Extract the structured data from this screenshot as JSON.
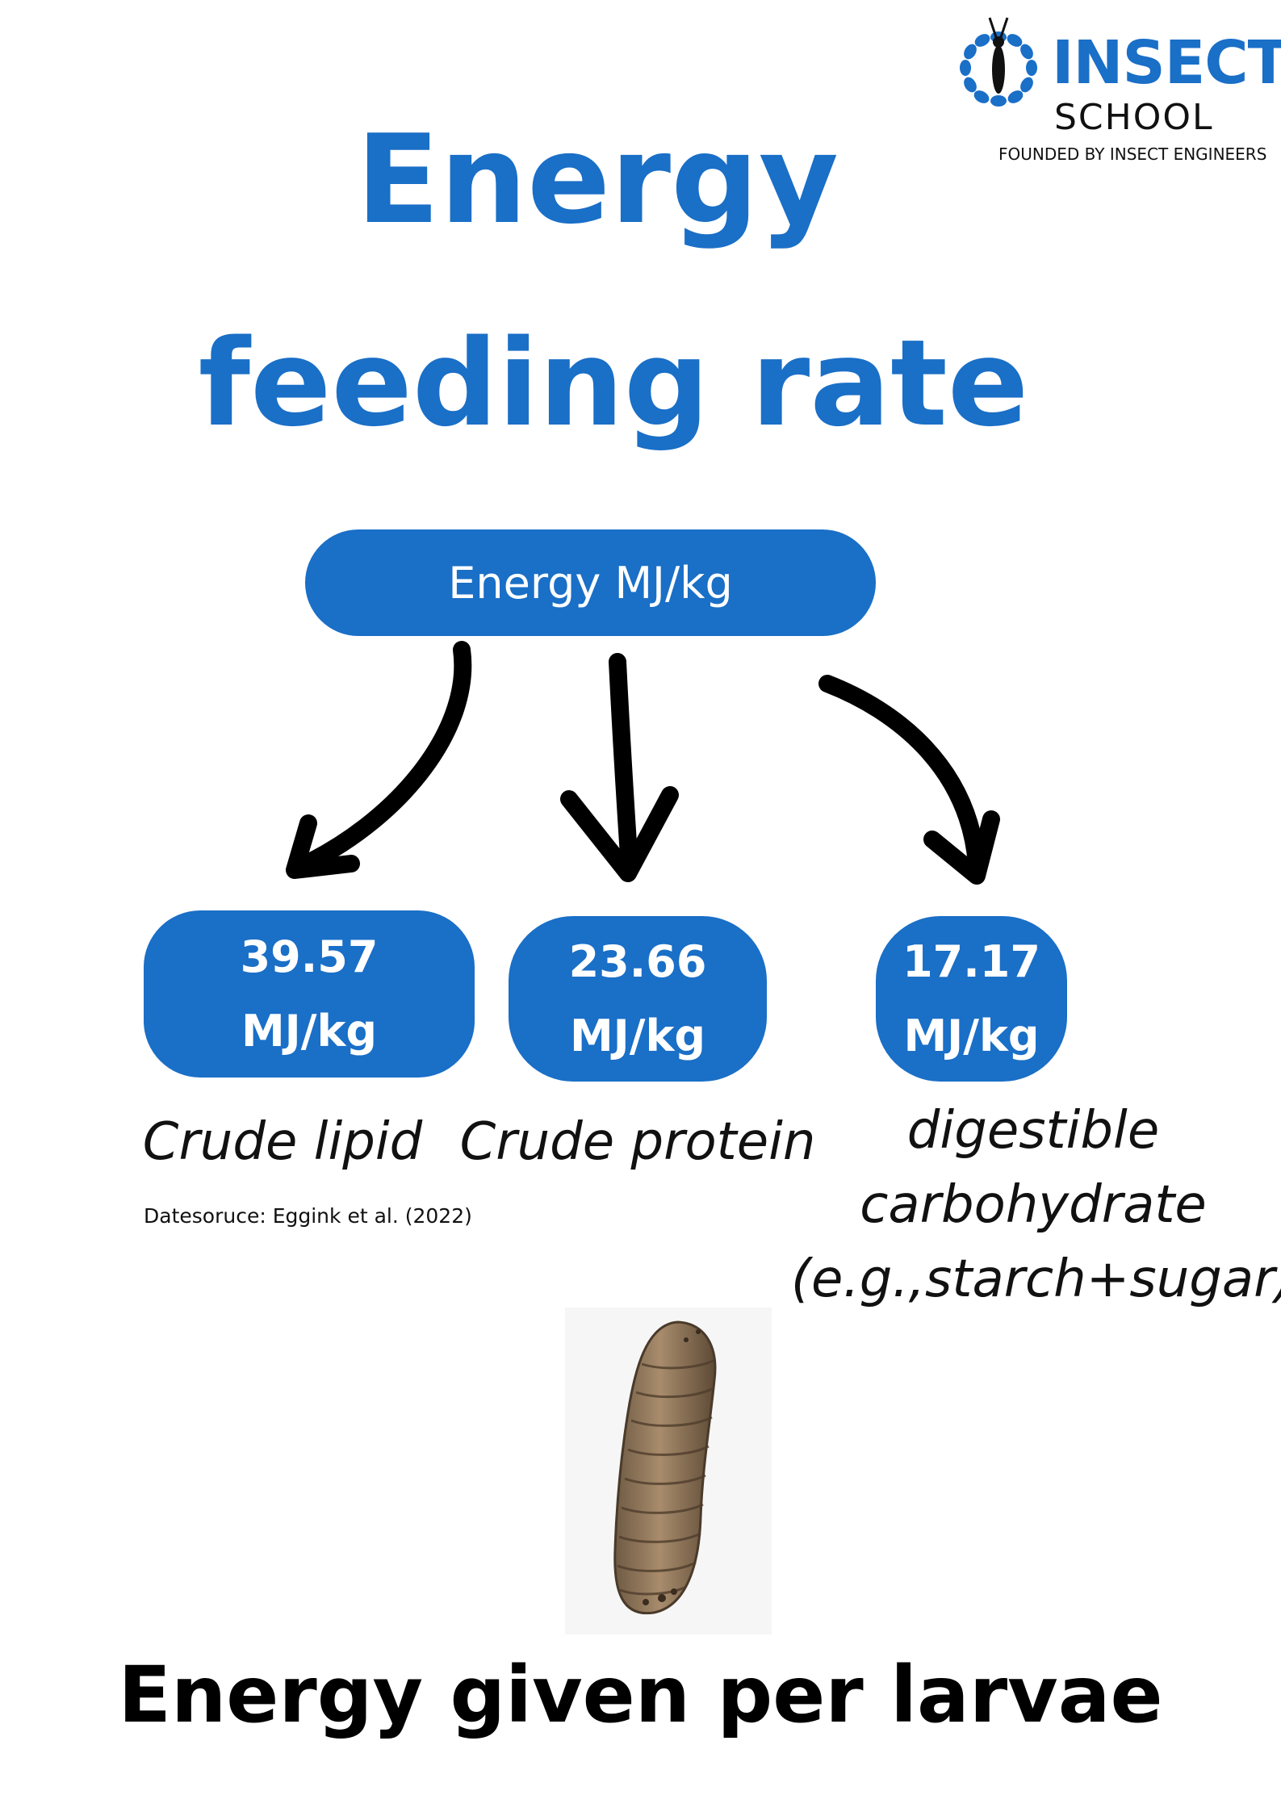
{
  "logo": {
    "brand_top": "INSECT",
    "brand_bottom": "SCHOOL",
    "tagline": "FOUNDED BY INSECT ENGINEERS",
    "icon": "insect-logo-icon",
    "brand_color": "#1a6fc7"
  },
  "title": {
    "line1": "Energy",
    "line2": "feeding rate",
    "color": "#1a6fc7"
  },
  "root": {
    "label": "Energy MJ/kg"
  },
  "branches": [
    {
      "value": "39.57",
      "unit": "MJ/kg",
      "caption_lines": [
        "Crude lipid"
      ]
    },
    {
      "value": "23.66",
      "unit": "MJ/kg",
      "caption_lines": [
        "Crude protein"
      ]
    },
    {
      "value": "17.17",
      "unit": "MJ/kg",
      "caption_lines": [
        "digestible",
        "carbohydrate",
        "(e.g.,starch+sugar)"
      ]
    }
  ],
  "source": "Datesoruce: Eggink et al. (2022)",
  "image": {
    "subject": "larva-photo"
  },
  "footer": {
    "title": "Energy given per larvae"
  }
}
